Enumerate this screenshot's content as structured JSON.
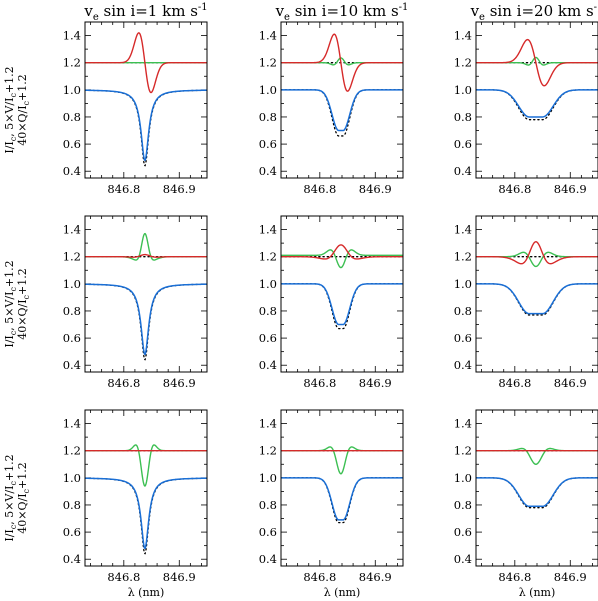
{
  "figure": {
    "column_titles": [
      {
        "main": "v",
        "sub": "e",
        "rest": " sin i=1 km s",
        "sup": "-1"
      },
      {
        "main": "v",
        "sub": "e",
        "rest": " sin i=10 km s",
        "sup": "-1"
      },
      {
        "main": "v",
        "sub": "e",
        "rest": " sin i=20 km s",
        "sup": "-1"
      }
    ],
    "ylabel": {
      "line1": {
        "a": "I/I",
        "a_sub": "c",
        "b": ", 5×V/I",
        "b_sub": "c",
        "c": "+1.2"
      },
      "line2": {
        "a": "40×Q/I",
        "a_sub": "c",
        "b": "+1.2"
      }
    },
    "xlabel": "λ (nm)"
  },
  "colors": {
    "stokes_i": "#1a6fd6",
    "stokes_v": "#d62a2a",
    "stokes_q": "#3cbf52",
    "dotted": "#000000"
  },
  "chart_data": [
    {
      "type": "line",
      "row": 1,
      "col": 1,
      "xlim": [
        846.73,
        846.95
      ],
      "ylim": [
        0.35,
        1.5
      ],
      "xticks": [
        "846.8",
        "846.9"
      ],
      "yticks": [
        "0.4",
        "0.6",
        "0.8",
        "1.0",
        "1.2",
        "1.4"
      ],
      "line_center": 846.838,
      "stokes_i_min": 0.48,
      "stokes_i_dotted_min": 0.44,
      "stokes_v": {
        "blue_peak": 1.42,
        "red_trough": 0.99
      },
      "stokes_q": {
        "level": 1.2
      }
    },
    {
      "type": "line",
      "row": 1,
      "col": 2,
      "xlim": [
        846.73,
        846.95
      ],
      "ylim": [
        0.35,
        1.5
      ],
      "xticks": [
        "846.8",
        "846.9"
      ],
      "yticks": [
        "0.4",
        "0.6",
        "0.8",
        "1.0",
        "1.2",
        "1.4"
      ],
      "line_center": 846.838,
      "stokes_i_min": 0.7,
      "stokes_i_dotted_min": 0.66,
      "stokes_v": {
        "blue_peak": 1.41,
        "red_trough": 0.99
      },
      "stokes_q": {
        "peak": 1.22,
        "trough": 1.18
      }
    },
    {
      "type": "line",
      "row": 1,
      "col": 3,
      "xlim": [
        846.73,
        846.95
      ],
      "ylim": [
        0.35,
        1.5
      ],
      "xticks": [
        "846.8",
        "846.9"
      ],
      "yticks": [
        "0.4",
        "0.6",
        "0.8",
        "1.0",
        "1.2",
        "1.4"
      ],
      "line_center": 846.838,
      "stokes_i_min": 0.8,
      "stokes_i_dotted_min": 0.78,
      "stokes_v": {
        "blue_peak": 1.37,
        "red_trough": 1.05
      },
      "stokes_q": {
        "peak": 1.23,
        "trough": 1.18
      }
    },
    {
      "type": "line",
      "row": 2,
      "col": 1,
      "xlim": [
        846.73,
        846.95
      ],
      "ylim": [
        0.35,
        1.5
      ],
      "xticks": [
        "846.8",
        "846.9"
      ],
      "yticks": [
        "0.4",
        "0.6",
        "0.8",
        "1.0",
        "1.2",
        "1.4"
      ],
      "line_center": 846.838,
      "stokes_i_min": 0.48,
      "stokes_i_dotted_min": 0.44,
      "stokes_v": {
        "center_peak": 1.22,
        "side_trough": 1.19
      },
      "stokes_q": {
        "center_peak": 1.43,
        "side_trough": 1.17
      }
    },
    {
      "type": "line",
      "row": 2,
      "col": 2,
      "xlim": [
        846.73,
        846.95
      ],
      "ylim": [
        0.35,
        1.5
      ],
      "xticks": [
        "846.8",
        "846.9"
      ],
      "yticks": [
        "0.4",
        "0.6",
        "0.8",
        "1.0",
        "1.2",
        "1.4"
      ],
      "line_center": 846.838,
      "stokes_i_min": 0.7,
      "stokes_i_dotted_min": 0.67,
      "stokes_v": {
        "center_peak": 1.31,
        "side_trough": 1.15
      },
      "stokes_q": {
        "side_peak": 1.28,
        "center_trough": 1.19,
        "outer_trough": 1.15
      }
    },
    {
      "type": "line",
      "row": 2,
      "col": 3,
      "xlim": [
        846.73,
        846.95
      ],
      "ylim": [
        0.35,
        1.5
      ],
      "xticks": [
        "846.8",
        "846.9"
      ],
      "yticks": [
        "0.4",
        "0.6",
        "0.8",
        "1.0",
        "1.2",
        "1.4"
      ],
      "line_center": 846.838,
      "stokes_i_min": 0.78,
      "stokes_i_dotted_min": 0.77,
      "stokes_v": {
        "center_peak": 1.37,
        "side_trough": 1.07
      },
      "stokes_q": {
        "side_peak": 1.26,
        "center_trough": 1.14
      }
    },
    {
      "type": "line",
      "row": 3,
      "col": 1,
      "xlim": [
        846.73,
        846.95
      ],
      "ylim": [
        0.35,
        1.5
      ],
      "xticks": [
        "846.8",
        "846.9"
      ],
      "yticks": [
        "0.4",
        "0.6",
        "0.8",
        "1.0",
        "1.2",
        "1.4"
      ],
      "line_center": 846.838,
      "stokes_i_min": 0.48,
      "stokes_i_dotted_min": 0.44,
      "stokes_v": {
        "level": 1.2
      },
      "stokes_q": {
        "center_trough": 0.94,
        "side_peak": 1.29
      }
    },
    {
      "type": "line",
      "row": 3,
      "col": 2,
      "xlim": [
        846.73,
        846.95
      ],
      "ylim": [
        0.35,
        1.5
      ],
      "xticks": [
        "846.8",
        "846.9"
      ],
      "yticks": [
        "0.4",
        "0.6",
        "0.8",
        "1.0",
        "1.2",
        "1.4"
      ],
      "line_center": 846.838,
      "stokes_i_min": 0.69,
      "stokes_i_dotted_min": 0.67,
      "stokes_v": {
        "level": 1.2
      },
      "stokes_q": {
        "center_trough": 1.03,
        "side_peak": 1.29
      }
    },
    {
      "type": "line",
      "row": 3,
      "col": 3,
      "xlim": [
        846.73,
        846.95
      ],
      "ylim": [
        0.35,
        1.5
      ],
      "xticks": [
        "846.8",
        "846.9"
      ],
      "yticks": [
        "0.4",
        "0.6",
        "0.8",
        "1.0",
        "1.2",
        "1.4"
      ],
      "line_center": 846.838,
      "stokes_i_min": 0.79,
      "stokes_i_dotted_min": 0.78,
      "stokes_v": {
        "level": 1.2
      },
      "stokes_q": {
        "center_trough": 1.1,
        "side_peak": 1.26
      }
    }
  ]
}
